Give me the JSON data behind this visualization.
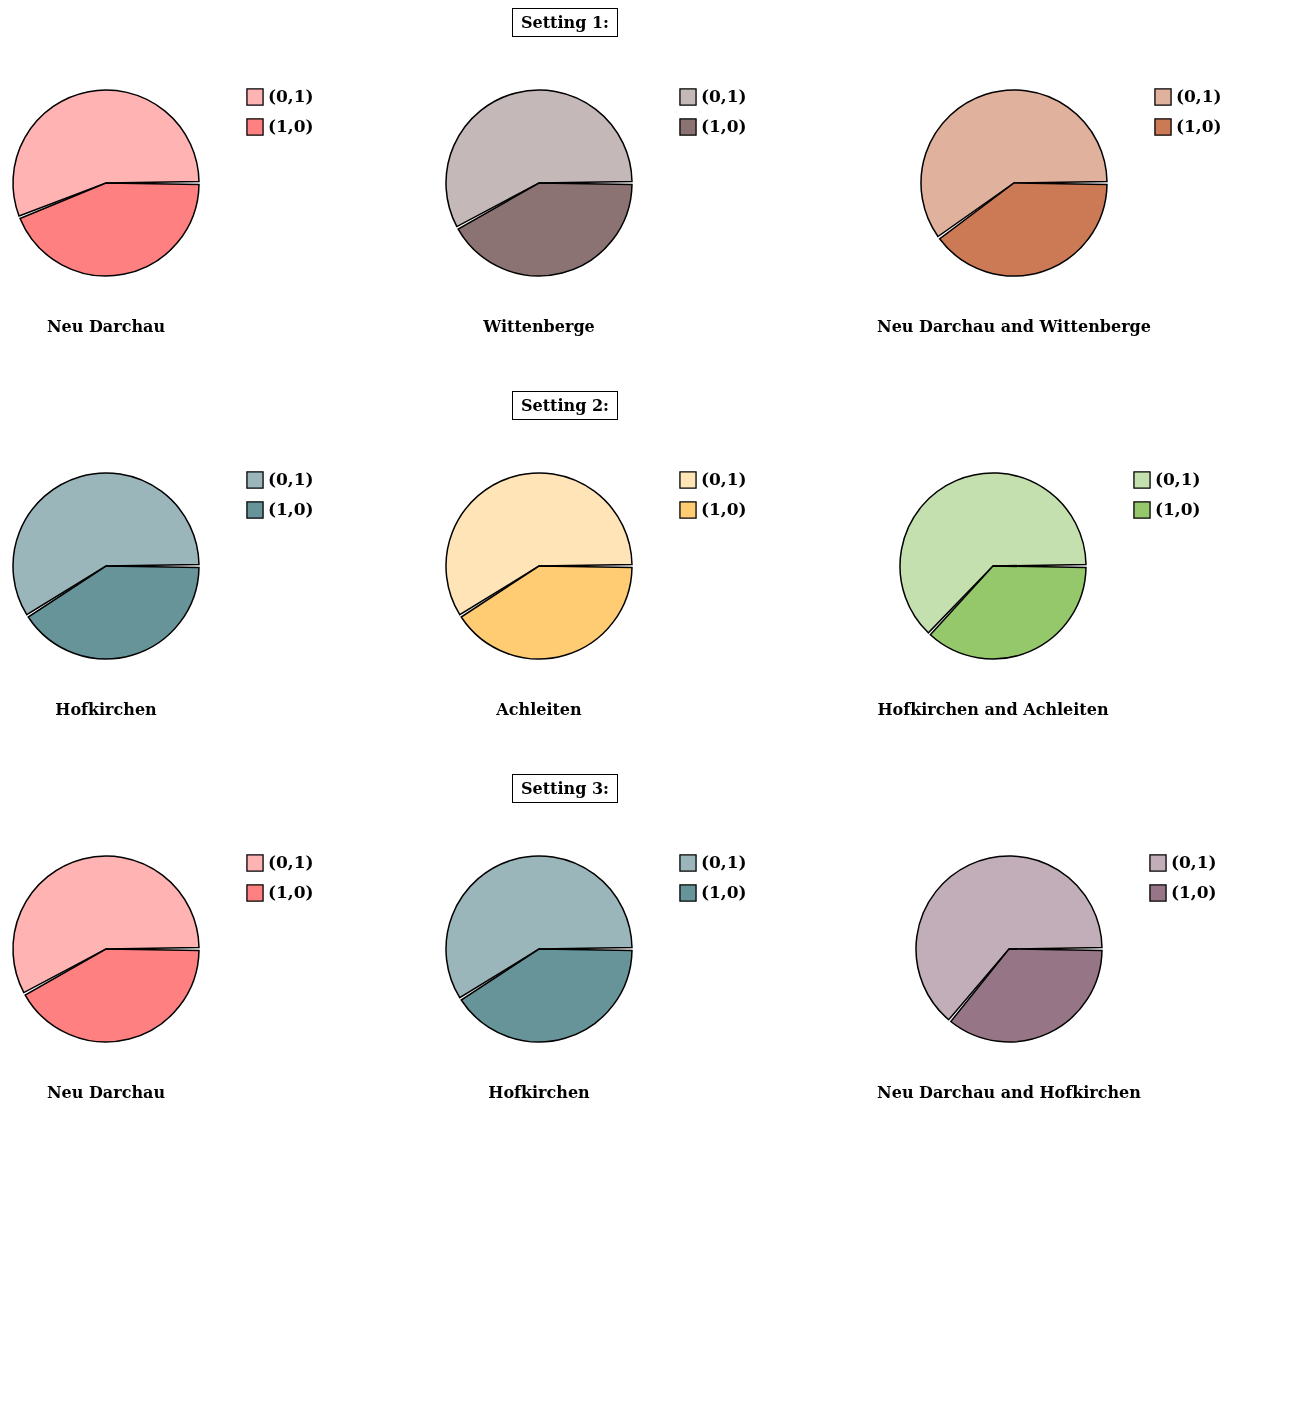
{
  "chart_data": [
    {
      "type": "pie",
      "annotations": [
        "Setting 1:"
      ],
      "title": "Neu Darchau",
      "categories": [
        "(0,1)",
        "(1,0)"
      ],
      "values": [
        56,
        44
      ],
      "colors": [
        "#ffb3b3",
        "#ff8080"
      ],
      "legend": "right"
    },
    {
      "type": "pie",
      "title": "Wittenberge",
      "categories": [
        "(0,1)",
        "(1,0)"
      ],
      "values": [
        58,
        42
      ],
      "colors": [
        "#c4b8b8",
        "#8c7373"
      ],
      "legend": "right"
    },
    {
      "type": "pie",
      "title": "Neu Darchau and Wittenberge",
      "categories": [
        "(0,1)",
        "(1,0)"
      ],
      "values": [
        60,
        40
      ],
      "colors": [
        "#e0b19c",
        "#cc7a56"
      ],
      "legend": "right"
    },
    {
      "type": "pie",
      "annotations": [
        "Setting 2:"
      ],
      "title": "Hofkirchen",
      "categories": [
        "(0,1)",
        "(1,0)"
      ],
      "values": [
        59,
        41
      ],
      "colors": [
        "#9bb6ba",
        "#679499"
      ],
      "legend": "right"
    },
    {
      "type": "pie",
      "title": "Achleiten",
      "categories": [
        "(0,1)",
        "(1,0)"
      ],
      "values": [
        59,
        41
      ],
      "colors": [
        "#ffe4b8",
        "#ffcb73"
      ],
      "legend": "right"
    },
    {
      "type": "pie",
      "title": "Hofkirchen and Achleiten",
      "categories": [
        "(0,1)",
        "(1,0)"
      ],
      "values": [
        63,
        37
      ],
      "colors": [
        "#c4e0ae",
        "#95c76b"
      ],
      "legend": "right"
    },
    {
      "type": "pie",
      "annotations": [
        "Setting 3:"
      ],
      "title": "Neu Darchau",
      "categories": [
        "(0,1)",
        "(1,0)"
      ],
      "values": [
        58,
        42
      ],
      "colors": [
        "#ffb3b3",
        "#ff8080"
      ],
      "legend": "right"
    },
    {
      "type": "pie",
      "title": "Hofkirchen",
      "categories": [
        "(0,1)",
        "(1,0)"
      ],
      "values": [
        59,
        41
      ],
      "colors": [
        "#9bb6ba",
        "#679499"
      ],
      "legend": "right"
    },
    {
      "type": "pie",
      "title": "Neu Darchau and Hofkirchen",
      "categories": [
        "(0,1)",
        "(1,0)"
      ],
      "values": [
        64,
        36
      ],
      "colors": [
        "#c2aeb8",
        "#967686"
      ],
      "legend": "right"
    }
  ]
}
